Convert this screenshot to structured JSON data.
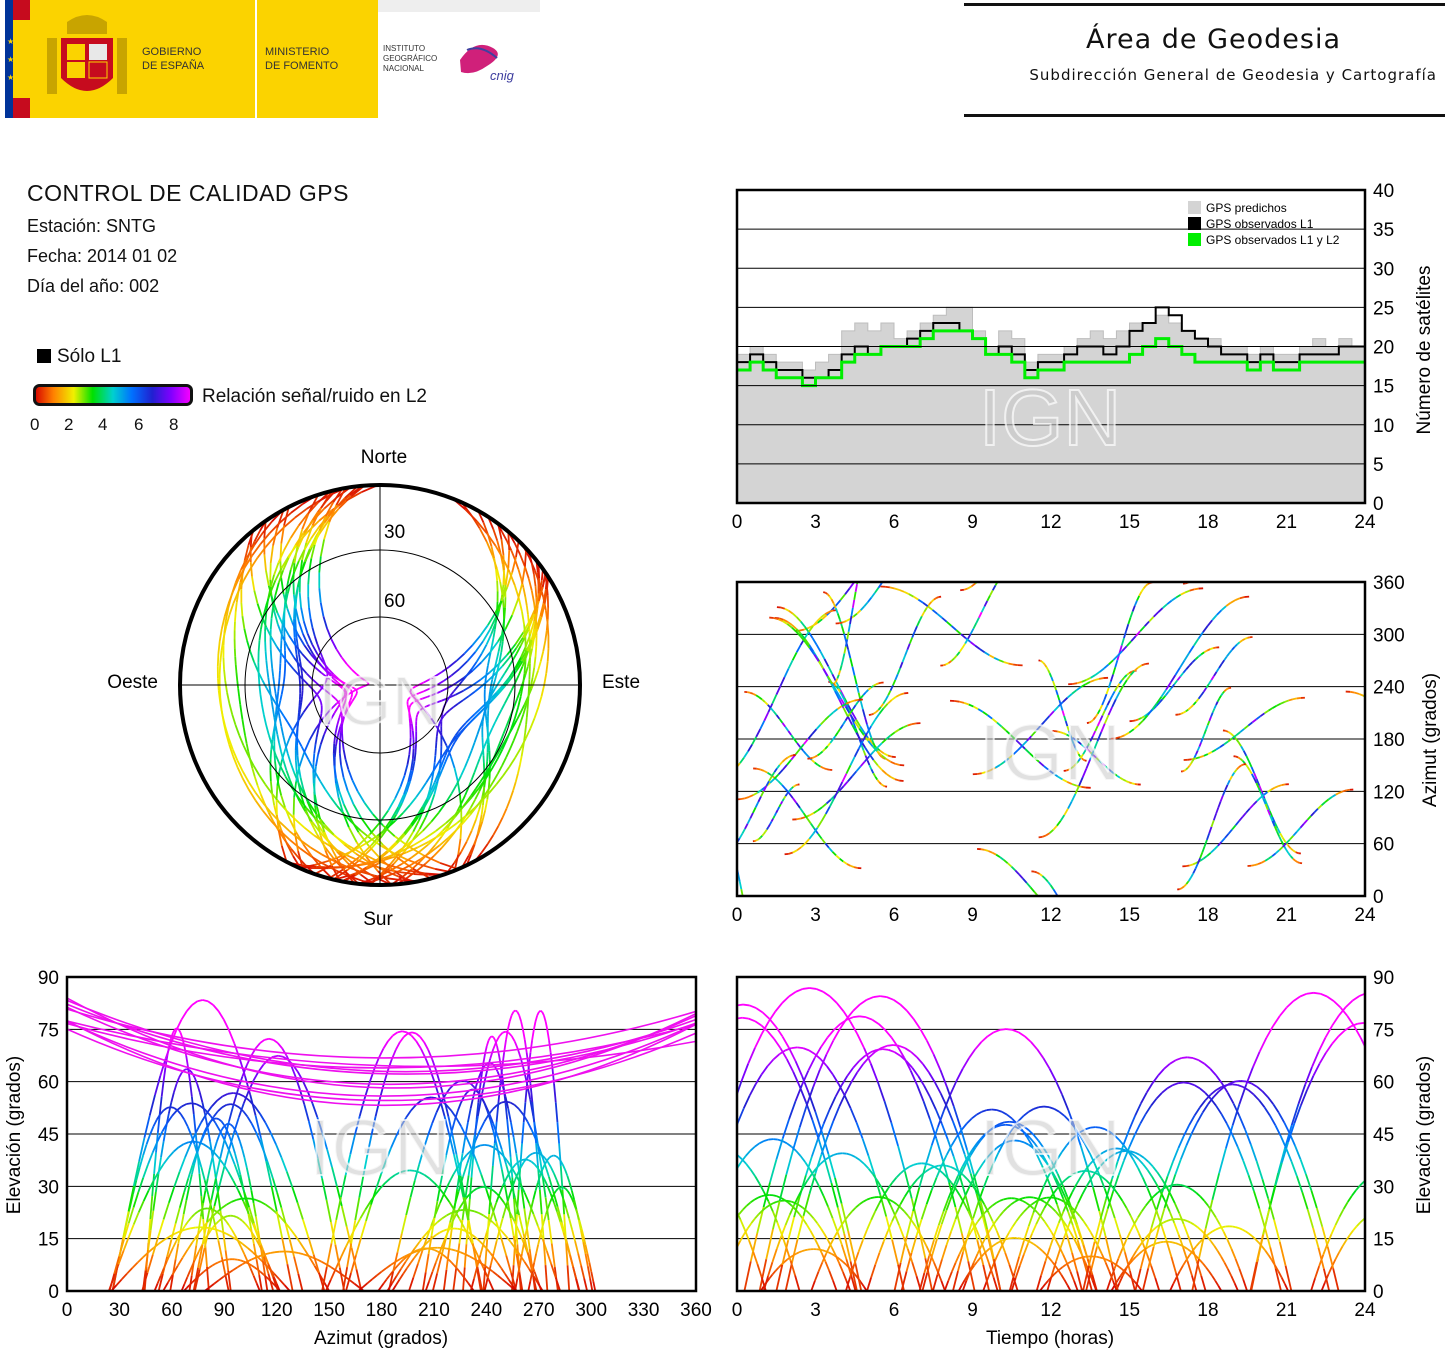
{
  "header": {
    "logo_gobierno_line1": "GOBIERNO",
    "logo_gobierno_line2": "DE ESPAÑA",
    "logo_ministerio_line1": "MINISTERIO",
    "logo_ministerio_line2": "DE FOMENTO",
    "logo_ign_line1": "INSTITUTO",
    "logo_ign_line2": "GEOGRÁFICO",
    "logo_ign_line3": "NACIONAL",
    "logo_cnig": "cnig",
    "area_title": "Área de Geodesia",
    "area_subtitle": "Subdirección General de Geodesia y Cartografía",
    "colors": {
      "gov_yellow": "#fbd300",
      "flag_red": "#c60b1e",
      "eu_blue": "#003399",
      "cnig_magenta": "#d0207a"
    }
  },
  "info": {
    "title": "CONTROL DE CALIDAD GPS",
    "station": "Estación: SNTG",
    "date": "Fecha: 2014 01 02",
    "doy": "Día del año: 002"
  },
  "legend": {
    "l1_only": "Sólo L1",
    "snr_label": "Relación señal/ruido en L2",
    "snr_ticks": [
      "0",
      "2",
      "4",
      "6",
      "8"
    ],
    "snr_colors": [
      "#d40000",
      "#ff8000",
      "#f0f000",
      "#00e000",
      "#00d0d0",
      "#0070ff",
      "#2020d0",
      "#8000ff",
      "#ff00ff"
    ]
  },
  "watermark": "IGN",
  "chart_data": [
    {
      "type": "area",
      "panel": "satellite-count",
      "x_ticks": [
        "0",
        "3",
        "6",
        "9",
        "12",
        "15",
        "18",
        "21",
        "24"
      ],
      "y_ticks": [
        "0",
        "5",
        "10",
        "15",
        "20",
        "25",
        "30",
        "35",
        "40"
      ],
      "xlim": [
        0,
        24
      ],
      "ylim": [
        0,
        40
      ],
      "ylabel": "Número de satélites",
      "legend_position": "top-right",
      "grid": true,
      "series": [
        {
          "name": "GPS predichos",
          "color": "#d4d4d4",
          "x": [
            0,
            0.5,
            1,
            1.5,
            2,
            2.5,
            3,
            3.5,
            4,
            4.5,
            5,
            5.5,
            6,
            6.5,
            7,
            7.5,
            8,
            8.5,
            9,
            9.5,
            10,
            10.5,
            11,
            11.5,
            12,
            12.5,
            13,
            13.5,
            14,
            14.5,
            15,
            15.5,
            16,
            16.5,
            17,
            17.5,
            18,
            18.5,
            19,
            19.5,
            20,
            20.5,
            21,
            21.5,
            22,
            22.5,
            23,
            23.5,
            24
          ],
          "y": [
            19,
            20,
            19,
            18,
            18,
            17,
            18,
            19,
            22,
            23,
            22,
            23,
            21,
            22,
            23,
            24,
            25,
            25,
            22,
            20,
            22,
            21,
            18,
            19,
            19,
            20,
            21,
            22,
            21,
            22,
            23,
            23,
            24,
            23,
            22,
            21,
            21,
            20,
            20,
            19,
            20,
            19,
            19,
            20,
            21,
            20,
            21,
            20,
            20
          ]
        },
        {
          "name": "GPS observados L1",
          "color": "#000000",
          "x": [
            0,
            0.5,
            1,
            1.5,
            2,
            2.5,
            3,
            3.5,
            4,
            4.5,
            5,
            5.5,
            6,
            6.5,
            7,
            7.5,
            8,
            8.5,
            9,
            9.5,
            10,
            10.5,
            11,
            11.5,
            12,
            12.5,
            13,
            13.5,
            14,
            14.5,
            15,
            15.5,
            16,
            16.5,
            17,
            17.5,
            18,
            18.5,
            19,
            19.5,
            20,
            20.5,
            21,
            21.5,
            22,
            22.5,
            23,
            23.5,
            24
          ],
          "y": [
            18,
            19,
            18,
            17,
            17,
            16,
            16,
            17,
            19,
            20,
            19,
            20,
            20,
            21,
            22,
            23,
            23,
            22,
            21,
            19,
            20,
            19,
            17,
            18,
            18,
            19,
            20,
            20,
            19,
            20,
            22,
            23,
            25,
            24,
            22,
            21,
            20,
            19,
            19,
            18,
            19,
            18,
            18,
            19,
            19,
            19,
            20,
            20,
            20
          ]
        },
        {
          "name": "GPS observados L1 y L2",
          "color": "#00ee00",
          "x": [
            0,
            0.5,
            1,
            1.5,
            2,
            2.5,
            3,
            3.5,
            4,
            4.5,
            5,
            5.5,
            6,
            6.5,
            7,
            7.5,
            8,
            8.5,
            9,
            9.5,
            10,
            10.5,
            11,
            11.5,
            12,
            12.5,
            13,
            13.5,
            14,
            14.5,
            15,
            15.5,
            16,
            16.5,
            17,
            17.5,
            18,
            18.5,
            19,
            19.5,
            20,
            20.5,
            21,
            21.5,
            22,
            22.5,
            23,
            23.5,
            24
          ],
          "y": [
            17,
            18,
            17,
            16,
            16,
            15,
            16,
            16,
            18,
            19,
            19,
            20,
            20,
            20,
            21,
            22,
            22,
            22,
            21,
            19,
            19,
            18,
            16,
            17,
            17,
            18,
            18,
            18,
            18,
            18,
            19,
            20,
            21,
            20,
            19,
            18,
            18,
            18,
            18,
            17,
            18,
            17,
            17,
            18,
            18,
            18,
            18,
            18,
            18
          ]
        }
      ]
    },
    {
      "type": "scatter",
      "panel": "skyplot",
      "direction_labels": {
        "north": "Norte",
        "south": "Sur",
        "west": "Oeste",
        "east": "Este"
      },
      "ring_labels": [
        "30",
        "60"
      ]
    },
    {
      "type": "scatter",
      "panel": "azimuth-vs-time",
      "x_ticks": [
        "0",
        "3",
        "6",
        "9",
        "12",
        "15",
        "18",
        "21",
        "24"
      ],
      "y_ticks": [
        "0",
        "60",
        "120",
        "180",
        "240",
        "300",
        "360"
      ],
      "xlim": [
        0,
        24
      ],
      "ylim": [
        0,
        360
      ],
      "ylabel": "Azimut (grados)",
      "grid": true
    },
    {
      "type": "scatter",
      "panel": "elevation-vs-azimuth",
      "x_ticks": [
        "0",
        "30",
        "60",
        "90",
        "120",
        "150",
        "180",
        "210",
        "240",
        "270",
        "300",
        "330",
        "360"
      ],
      "y_ticks": [
        "0",
        "15",
        "30",
        "45",
        "60",
        "75",
        "90"
      ],
      "xlim": [
        0,
        360
      ],
      "ylim": [
        0,
        90
      ],
      "xlabel": "Azimut (grados)",
      "ylabel": "Elevación (grados)",
      "grid": true
    },
    {
      "type": "scatter",
      "panel": "elevation-vs-time",
      "x_ticks": [
        "0",
        "3",
        "6",
        "9",
        "12",
        "15",
        "18",
        "21",
        "24"
      ],
      "y_ticks": [
        "0",
        "15",
        "30",
        "45",
        "60",
        "75",
        "90"
      ],
      "xlim": [
        0,
        24
      ],
      "ylim": [
        0,
        90
      ],
      "xlabel": "Tiempo (horas)",
      "ylabel": "Elevación (grados)",
      "grid": true
    }
  ]
}
